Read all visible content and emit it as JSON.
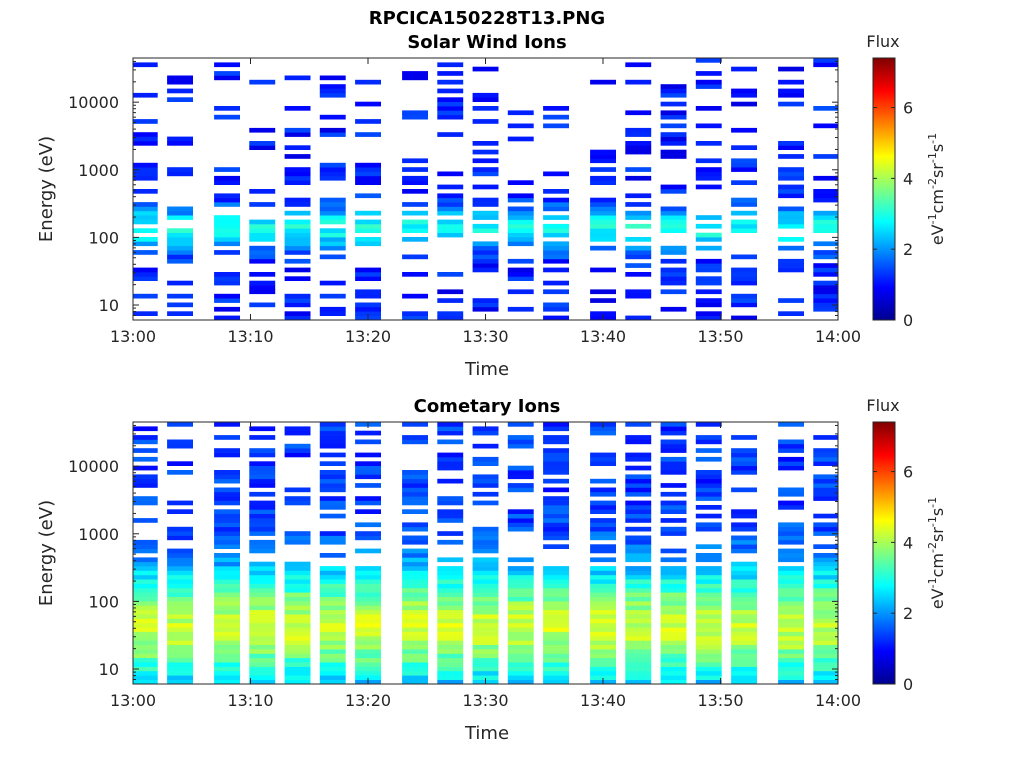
{
  "figure_title": "RPCICA150228T13.PNG",
  "colorbar": {
    "title": "Flux",
    "units": "eV-1cm-2sr-1s-1",
    "ticks": [
      "0",
      "2",
      "4",
      "6"
    ],
    "range": [
      0,
      7.4
    ],
    "colormap": "jet"
  },
  "chart_data": [
    {
      "type": "heatmap",
      "title": "Solar Wind Ions",
      "xlabel": "Time",
      "ylabel": "Energy (eV)",
      "x_ticks": [
        "13:00",
        "13:10",
        "13:20",
        "13:30",
        "13:40",
        "13:50",
        "14:00"
      ],
      "y_ticks": [
        "10",
        "100",
        "1000",
        "10000"
      ],
      "y_scale": "log",
      "ylim": [
        6,
        45000
      ],
      "xlim": [
        "13:00",
        "14:00"
      ],
      "time_columns": [
        "13:01",
        "13:04",
        "13:08",
        "13:11",
        "13:14",
        "13:17",
        "13:20",
        "13:24",
        "13:27",
        "13:30",
        "13:33",
        "13:36",
        "13:40",
        "13:43",
        "13:46",
        "13:49",
        "13:52",
        "13:56",
        "13:59"
      ],
      "profile": {
        "core_log_energy": 2.1,
        "core_width": 0.22,
        "core_flux": 2.9,
        "background_flux": 1.1,
        "fill_probability": 0.45
      }
    },
    {
      "type": "heatmap",
      "title": "Cometary Ions",
      "xlabel": "Time",
      "ylabel": "Energy (eV)",
      "x_ticks": [
        "13:00",
        "13:10",
        "13:20",
        "13:30",
        "13:40",
        "13:50",
        "14:00"
      ],
      "y_ticks": [
        "10",
        "100",
        "1000",
        "10000"
      ],
      "y_scale": "log",
      "ylim": [
        6,
        45000
      ],
      "xlim": [
        "13:00",
        "14:00"
      ],
      "time_columns": [
        "13:01",
        "13:04",
        "13:08",
        "13:11",
        "13:14",
        "13:17",
        "13:20",
        "13:24",
        "13:27",
        "13:30",
        "13:33",
        "13:36",
        "13:40",
        "13:43",
        "13:46",
        "13:49",
        "13:52",
        "13:56",
        "13:59"
      ],
      "profile": {
        "core_log_energy": 1.6,
        "core_width": 0.6,
        "core_flux": 4.2,
        "background_flux": 1.3,
        "fill_probability": 0.9
      }
    }
  ]
}
